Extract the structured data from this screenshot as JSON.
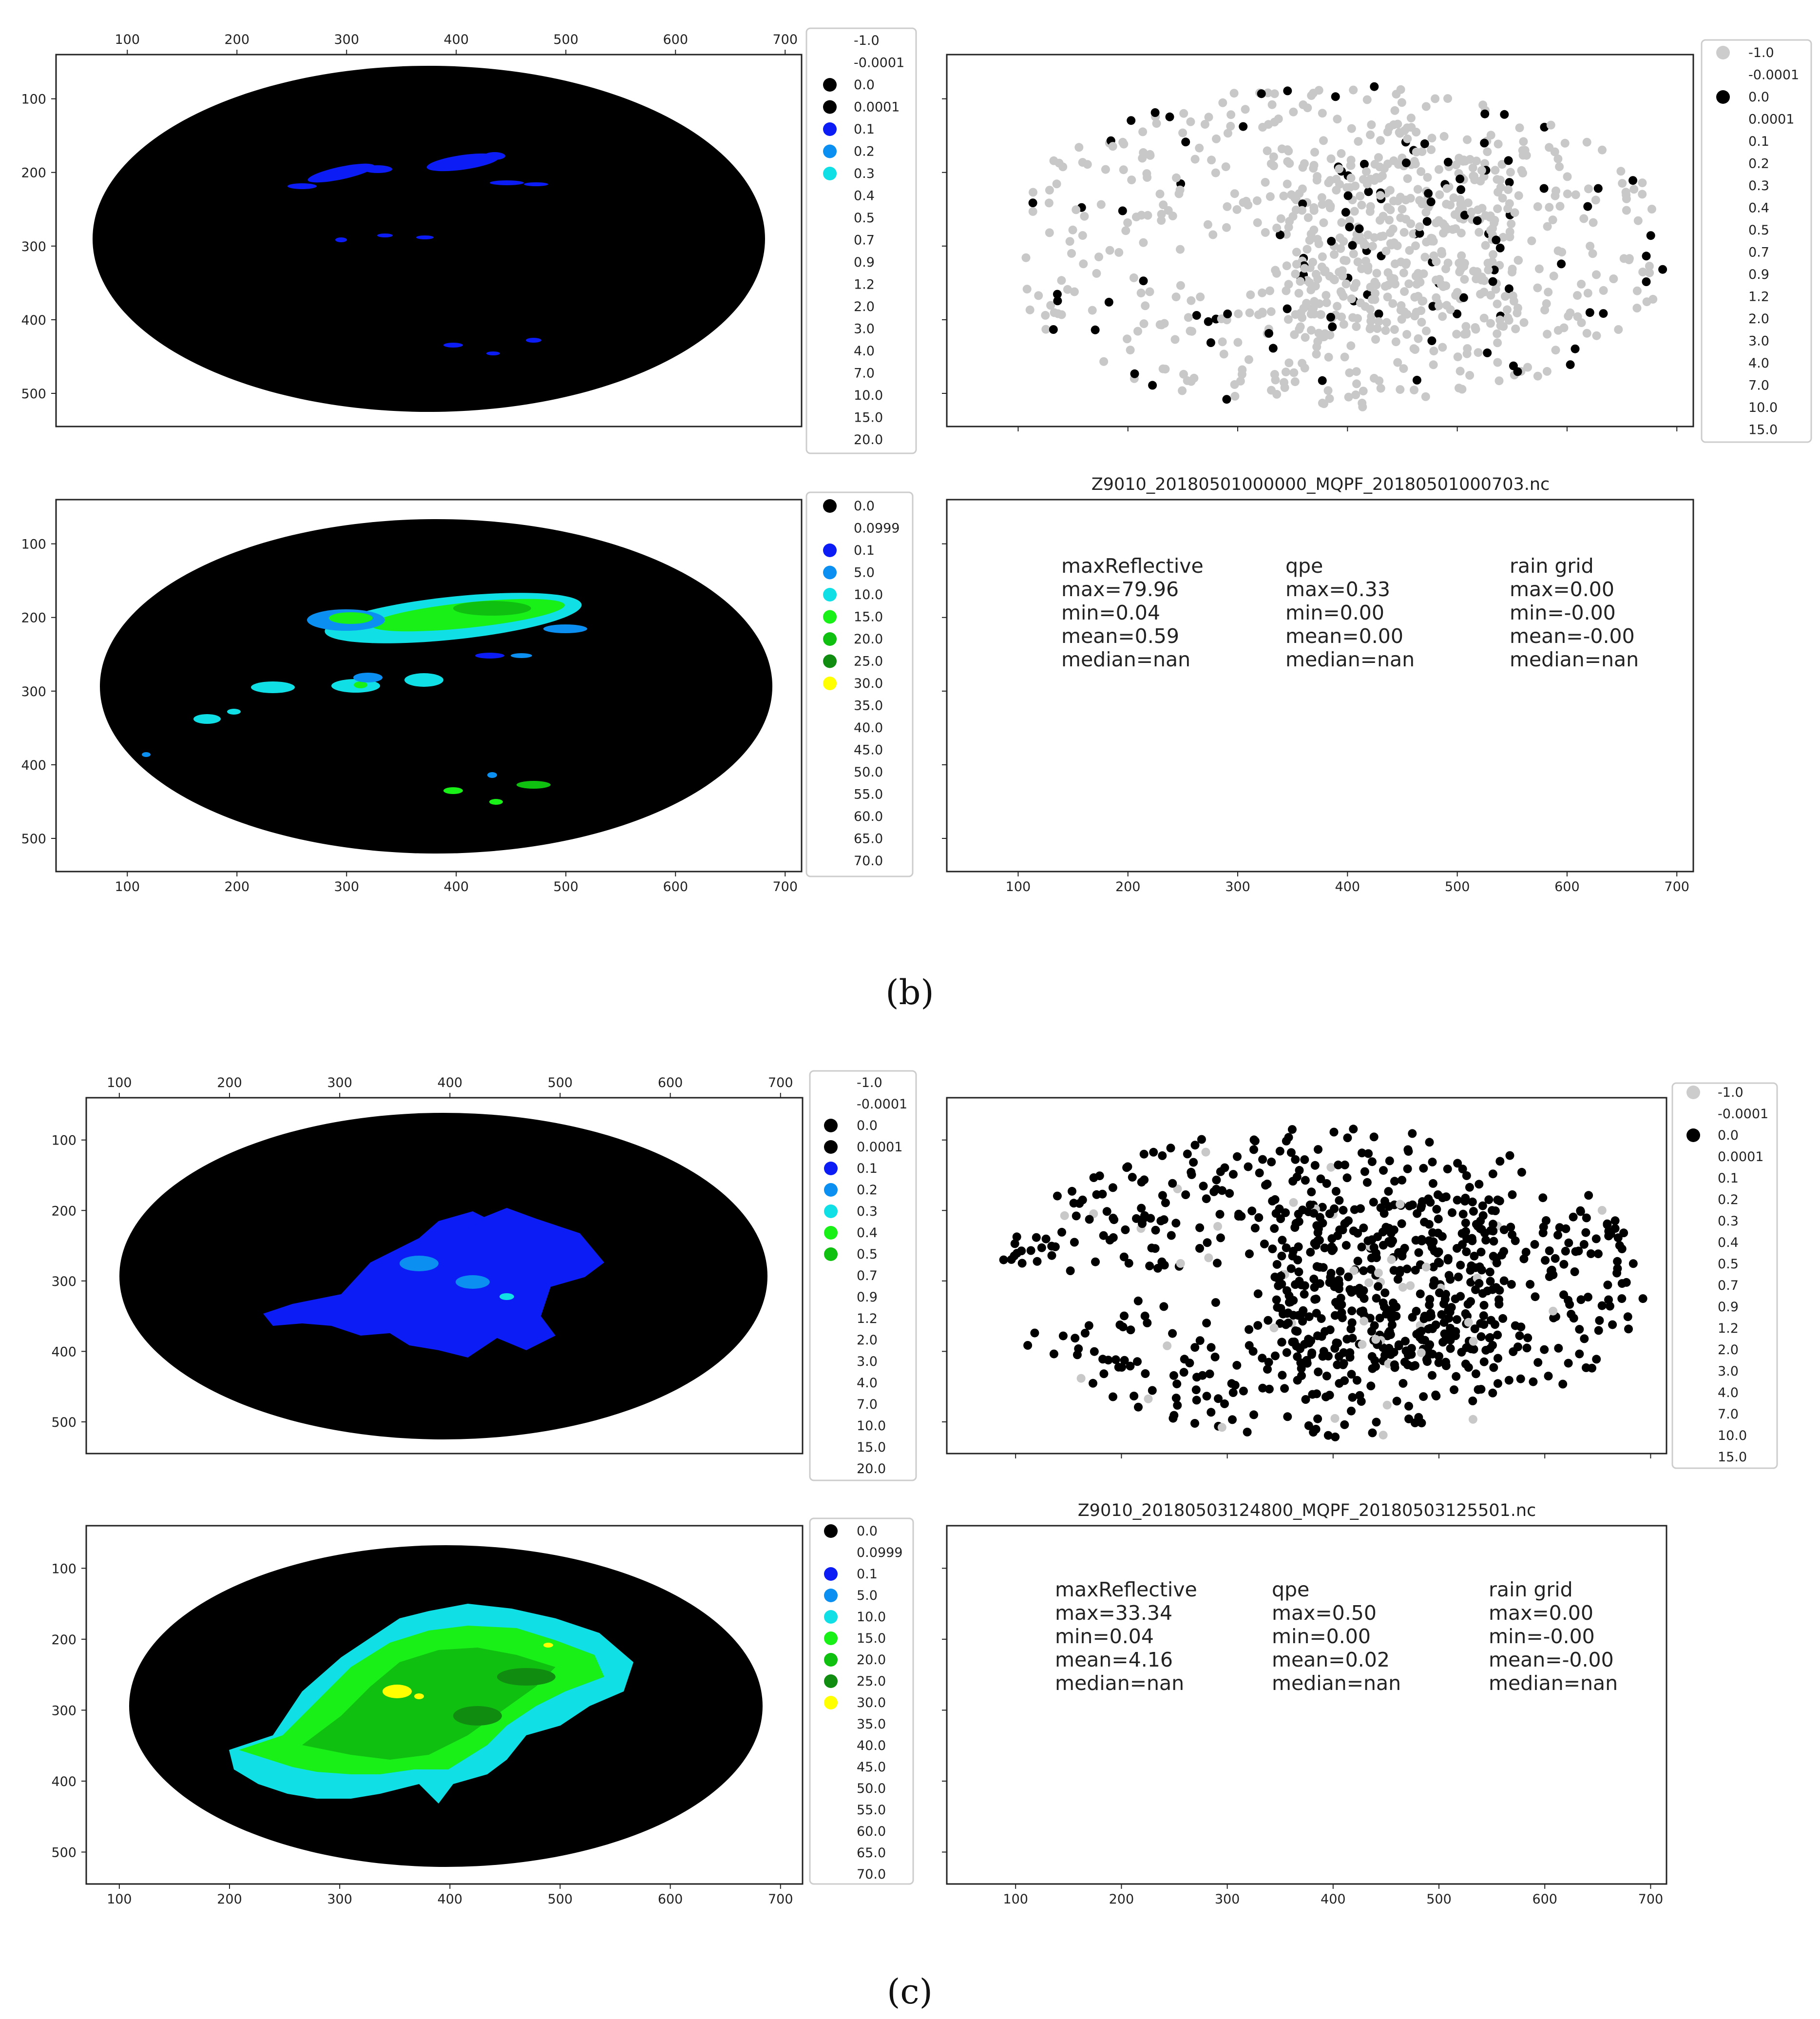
{
  "panels": [
    {
      "caption": "(b)",
      "filename": "Z9010_20180501000000_MQPF_20180501000703.nc",
      "stats": [
        {
          "name": "maxReflective",
          "max": "max=79.96",
          "min": "min=0.04",
          "mean": "mean=0.59",
          "median": "median=nan"
        },
        {
          "name": "qpe",
          "max": "max=0.33",
          "min": "min=0.00",
          "mean": "mean=0.00",
          "median": "median=nan"
        },
        {
          "name": "rain grid",
          "max": "max=0.00",
          "min": "min=-0.00",
          "mean": "mean=-0.00",
          "median": "median=nan"
        }
      ],
      "qpe_legend_colors": [
        "",
        "",
        "#000000",
        "#000000",
        "#0b1cf5",
        "#0b8ff0",
        "#11dfe6",
        "",
        "",
        "",
        "",
        "",
        "",
        "",
        "",
        "",
        "",
        "",
        ""
      ],
      "refl_legend_colors": [
        "#000000",
        "",
        "#0b1cf5",
        "#0b8ff0",
        "#11dfe6",
        "#18f018",
        "#10c010",
        "#108c10",
        "#ffff00",
        "",
        "",
        "",
        "",
        "",
        "",
        "",
        "",
        "#b08ae6"
      ],
      "scatter_legend_colors": [
        "#cccccc",
        "",
        "#000000",
        "",
        "",
        "",
        "",
        "",
        "",
        "",
        "",
        "",
        "",
        "",
        "",
        "",
        ""
      ],
      "scatter_black_fraction": 0.12
    },
    {
      "caption": "(c)",
      "filename": "Z9010_20180503124800_MQPF_20180503125501.nc",
      "stats": [
        {
          "name": "maxReflective",
          "max": "max=33.34",
          "min": "min=0.04",
          "mean": "mean=4.16",
          "median": "median=nan"
        },
        {
          "name": "qpe",
          "max": "max=0.50",
          "min": "min=0.00",
          "mean": "mean=0.02",
          "median": "median=nan"
        },
        {
          "name": "rain grid",
          "max": "max=0.00",
          "min": "min=-0.00",
          "mean": "mean=-0.00",
          "median": "median=nan"
        }
      ],
      "qpe_legend_colors": [
        "",
        "",
        "#000000",
        "#000000",
        "#0b1cf5",
        "#0b8ff0",
        "#11dfe6",
        "#18f018",
        "#10c010",
        "",
        "",
        "",
        "",
        "",
        "",
        "",
        "",
        "",
        ""
      ],
      "refl_legend_colors": [
        "#000000",
        "",
        "#0b1cf5",
        "#0b8ff0",
        "#11dfe6",
        "#18f018",
        "#10c010",
        "#108c10",
        "#ffff00",
        "",
        "",
        "",
        "",
        "",
        "",
        "",
        "",
        ""
      ],
      "scatter_legend_colors": [
        "#cccccc",
        "",
        "#000000",
        "",
        "",
        "",
        "",
        "",
        "",
        "",
        "",
        "",
        "",
        "",
        "",
        "",
        ""
      ],
      "scatter_black_fraction": 0.93
    }
  ],
  "chart_data": {
    "type": "heatmap",
    "x_ticks": [
      "100",
      "200",
      "300",
      "400",
      "500",
      "600",
      "700"
    ],
    "y_ticks": [
      "100",
      "200",
      "300",
      "400",
      "500"
    ],
    "qpe_legend": [
      "-1.0",
      "-0.0001",
      "0.0",
      "0.0001",
      "0.1",
      "0.2",
      "0.3",
      "0.4",
      "0.5",
      "0.7",
      "0.9",
      "1.2",
      "2.0",
      "3.0",
      "4.0",
      "7.0",
      "10.0",
      "15.0",
      "20.0"
    ],
    "reflectivity_legend": [
      "0.0",
      "0.0999",
      "0.1",
      "5.0",
      "10.0",
      "15.0",
      "20.0",
      "25.0",
      "30.0",
      "35.0",
      "40.0",
      "45.0",
      "50.0",
      "55.0",
      "60.0",
      "65.0",
      "70.0"
    ],
    "raingrid_legend": [
      "-1.0",
      "-0.0001",
      "0.0",
      "0.0001",
      "0.1",
      "0.2",
      "0.3",
      "0.4",
      "0.5",
      "0.7",
      "0.9",
      "1.2",
      "2.0",
      "3.0",
      "4.0",
      "7.0",
      "10.0",
      "15.0"
    ]
  }
}
